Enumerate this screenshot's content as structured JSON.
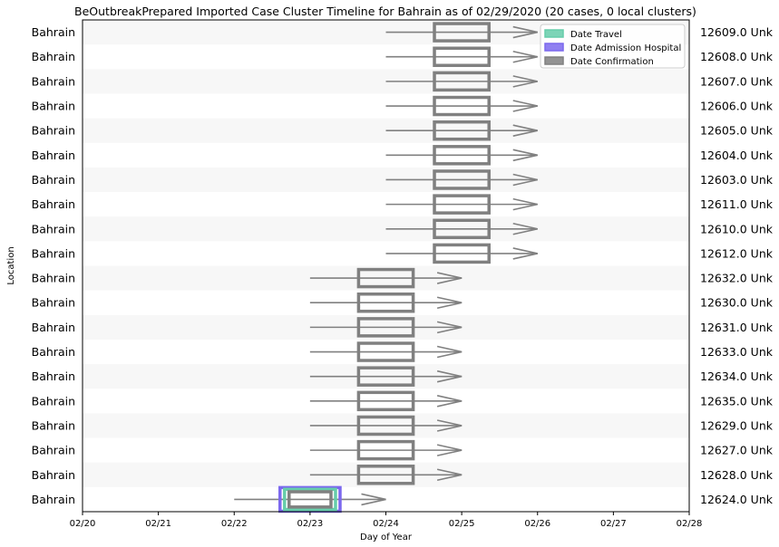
{
  "chart_data": {
    "type": "timeline",
    "title": "BeOutbreakPrepared Imported Case Cluster Timeline for Bahrain as of 02/29/2020   (20 cases, 0 local clusters)",
    "xlabel": "Day of Year",
    "ylabel": "Location",
    "x_ticks": [
      "02/20",
      "02/21",
      "02/22",
      "02/23",
      "02/24",
      "02/25",
      "02/26",
      "02/27",
      "02/28"
    ],
    "xlim": [
      "02/20",
      "02/28"
    ],
    "legend_placement": "top-right",
    "legend": [
      {
        "name": "Date Travel",
        "color": "#66cdaa"
      },
      {
        "name": "Date Admission Hospital",
        "color": "#7b68ee"
      },
      {
        "name": "Date Confirmation",
        "color": "#808080"
      }
    ],
    "rows": [
      {
        "location": "Bahrain",
        "case": "12609.0 Unk",
        "arrow_start": "02/24",
        "arrow_end": "02/26",
        "confirmation": "02/25"
      },
      {
        "location": "Bahrain",
        "case": "12608.0 Unk",
        "arrow_start": "02/24",
        "arrow_end": "02/26",
        "confirmation": "02/25"
      },
      {
        "location": "Bahrain",
        "case": "12607.0 Unk",
        "arrow_start": "02/24",
        "arrow_end": "02/26",
        "confirmation": "02/25"
      },
      {
        "location": "Bahrain",
        "case": "12606.0 Unk",
        "arrow_start": "02/24",
        "arrow_end": "02/26",
        "confirmation": "02/25"
      },
      {
        "location": "Bahrain",
        "case": "12605.0 Unk",
        "arrow_start": "02/24",
        "arrow_end": "02/26",
        "confirmation": "02/25"
      },
      {
        "location": "Bahrain",
        "case": "12604.0 Unk",
        "arrow_start": "02/24",
        "arrow_end": "02/26",
        "confirmation": "02/25"
      },
      {
        "location": "Bahrain",
        "case": "12603.0 Unk",
        "arrow_start": "02/24",
        "arrow_end": "02/26",
        "confirmation": "02/25"
      },
      {
        "location": "Bahrain",
        "case": "12611.0 Unk",
        "arrow_start": "02/24",
        "arrow_end": "02/26",
        "confirmation": "02/25"
      },
      {
        "location": "Bahrain",
        "case": "12610.0 Unk",
        "arrow_start": "02/24",
        "arrow_end": "02/26",
        "confirmation": "02/25"
      },
      {
        "location": "Bahrain",
        "case": "12612.0 Unk",
        "arrow_start": "02/24",
        "arrow_end": "02/26",
        "confirmation": "02/25"
      },
      {
        "location": "Bahrain",
        "case": "12632.0 Unk",
        "arrow_start": "02/23",
        "arrow_end": "02/25",
        "confirmation": "02/24"
      },
      {
        "location": "Bahrain",
        "case": "12630.0 Unk",
        "arrow_start": "02/23",
        "arrow_end": "02/25",
        "confirmation": "02/24"
      },
      {
        "location": "Bahrain",
        "case": "12631.0 Unk",
        "arrow_start": "02/23",
        "arrow_end": "02/25",
        "confirmation": "02/24"
      },
      {
        "location": "Bahrain",
        "case": "12633.0 Unk",
        "arrow_start": "02/23",
        "arrow_end": "02/25",
        "confirmation": "02/24"
      },
      {
        "location": "Bahrain",
        "case": "12634.0 Unk",
        "arrow_start": "02/23",
        "arrow_end": "02/25",
        "confirmation": "02/24"
      },
      {
        "location": "Bahrain",
        "case": "12635.0 Unk",
        "arrow_start": "02/23",
        "arrow_end": "02/25",
        "confirmation": "02/24"
      },
      {
        "location": "Bahrain",
        "case": "12629.0 Unk",
        "arrow_start": "02/23",
        "arrow_end": "02/25",
        "confirmation": "02/24"
      },
      {
        "location": "Bahrain",
        "case": "12627.0 Unk",
        "arrow_start": "02/23",
        "arrow_end": "02/25",
        "confirmation": "02/24"
      },
      {
        "location": "Bahrain",
        "case": "12628.0 Unk",
        "arrow_start": "02/23",
        "arrow_end": "02/25",
        "confirmation": "02/24"
      },
      {
        "location": "Bahrain",
        "case": "12624.0 Unk",
        "arrow_start": "02/22",
        "arrow_end": "02/24",
        "travel": "02/23",
        "admission": "02/23",
        "confirmation": "02/23"
      }
    ]
  }
}
